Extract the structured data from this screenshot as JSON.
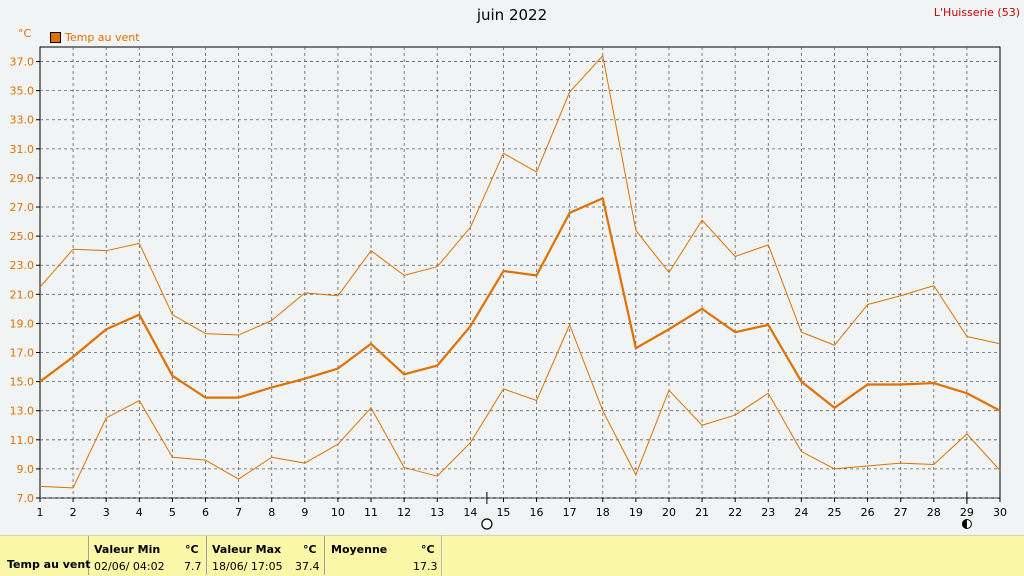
{
  "header": {
    "title": "juin 2022",
    "station": "L'Huisserie (53)",
    "unit": "°C",
    "legend_label": "Temp au vent"
  },
  "colors": {
    "series": "#e07000",
    "grid": "#606060",
    "background": "#f0f4f4",
    "panel": "#fbf7a9",
    "station": "#cc0000"
  },
  "moon_icons": [
    {
      "day": 14.5,
      "icon": "full-moon-icon"
    },
    {
      "day": 29,
      "icon": "new-moon-icon"
    }
  ],
  "chart_data": {
    "type": "line",
    "title": "juin 2022",
    "ylabel": "°C",
    "xlim": [
      1,
      30
    ],
    "ylim": [
      7.0,
      38.0
    ],
    "yticks": [
      7.0,
      9.0,
      11.0,
      13.0,
      15.0,
      17.0,
      19.0,
      21.0,
      23.0,
      25.0,
      27.0,
      29.0,
      31.0,
      33.0,
      35.0,
      37.0
    ],
    "x": [
      1,
      2,
      3,
      4,
      5,
      6,
      7,
      8,
      9,
      10,
      11,
      12,
      13,
      14,
      15,
      16,
      17,
      18,
      19,
      20,
      21,
      22,
      23,
      24,
      25,
      26,
      27,
      28,
      29,
      30
    ],
    "grid": true,
    "series": [
      {
        "name": "Temp au vent",
        "role": "mean",
        "values": [
          15.0,
          16.7,
          18.6,
          19.6,
          15.4,
          13.9,
          13.9,
          14.6,
          15.2,
          15.9,
          17.6,
          15.5,
          16.1,
          18.8,
          22.6,
          22.3,
          26.6,
          27.6,
          17.3,
          18.6,
          20.0,
          18.4,
          18.9,
          15.0,
          13.2,
          14.8,
          14.8,
          14.9,
          14.2,
          13.0
        ]
      },
      {
        "role": "max",
        "values": [
          21.5,
          24.1,
          24.0,
          24.5,
          19.6,
          18.3,
          18.2,
          19.2,
          21.1,
          20.9,
          24.0,
          22.3,
          22.9,
          25.6,
          30.7,
          29.4,
          34.9,
          37.4,
          25.4,
          22.5,
          26.1,
          23.6,
          24.4,
          18.4,
          17.5,
          20.3,
          20.9,
          21.6,
          18.1,
          17.6
        ]
      },
      {
        "role": "min",
        "values": [
          7.8,
          7.7,
          12.5,
          13.7,
          9.8,
          9.6,
          8.3,
          9.8,
          9.4,
          10.7,
          13.2,
          9.1,
          8.5,
          10.8,
          14.5,
          13.7,
          18.9,
          13.0,
          8.6,
          14.4,
          12.0,
          12.7,
          14.2,
          10.2,
          9.0,
          9.2,
          9.4,
          9.3,
          11.4,
          8.9
        ]
      }
    ]
  },
  "summary": {
    "row_label": "Temp au vent",
    "min": {
      "heading": "Valeur Min",
      "unit": "°C",
      "when": "02/06/  04:02",
      "value": "7.7"
    },
    "max": {
      "heading": "Valeur Max",
      "unit": "°C",
      "when": "18/06/  17:05",
      "value": "37.4"
    },
    "mean": {
      "heading": "Moyenne",
      "unit": "°C",
      "value": "17.3"
    }
  }
}
